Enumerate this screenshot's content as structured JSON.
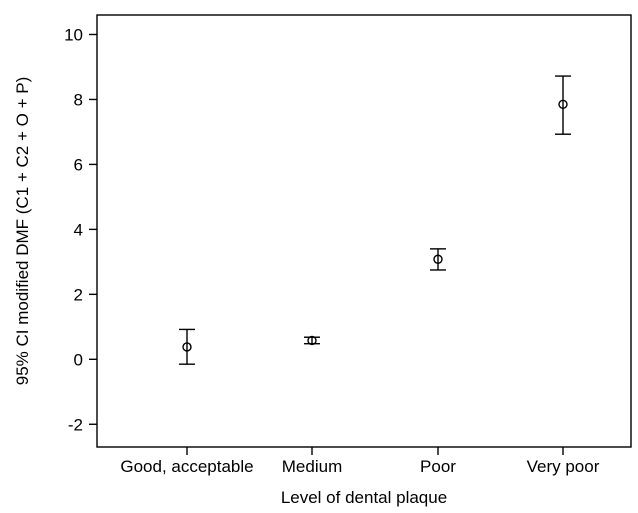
{
  "chart_data": {
    "type": "errorbar",
    "xlabel": "Level of dental plaque",
    "ylabel": "95% CI modified DMF (C1 + C2 + O + P)",
    "ylim": [
      -2.7,
      10.6
    ],
    "yticks": [
      -2,
      0,
      2,
      4,
      6,
      8,
      10
    ],
    "categories": [
      "Good, acceptable",
      "Medium",
      "Poor",
      "Very poor"
    ],
    "points": [
      {
        "category": "Good, acceptable",
        "mean": 0.38,
        "lower": -0.15,
        "upper": 0.92
      },
      {
        "category": "Medium",
        "mean": 0.58,
        "lower": 0.48,
        "upper": 0.68
      },
      {
        "category": "Poor",
        "mean": 3.08,
        "lower": 2.75,
        "upper": 3.4
      },
      {
        "category": "Very poor",
        "mean": 7.85,
        "lower": 6.93,
        "upper": 8.72
      }
    ],
    "grid": false,
    "legend": "none"
  }
}
